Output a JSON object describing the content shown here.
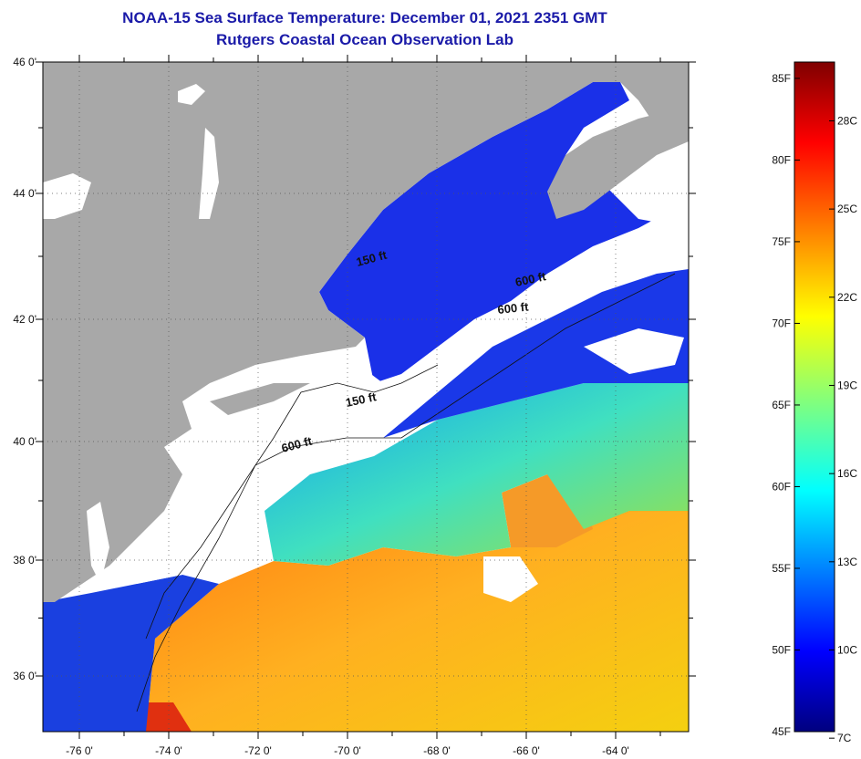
{
  "header": {
    "title": "NOAA-15 Sea Surface Temperature:  December 01, 2021 2351 GMT",
    "subtitle": "Rutgers Coastal Ocean Observation Lab"
  },
  "map": {
    "longitude_labels": [
      "-76 0'",
      "-74 0'",
      "-72 0'",
      "-70 0'",
      "-68 0'",
      "-66 0'",
      "-64 0'"
    ],
    "latitude_labels": [
      "46 0'",
      "44 0'",
      "42 0'",
      "40 0'",
      "38 0'",
      "36 0'"
    ],
    "contour_labels": [
      {
        "text": "150 ft",
        "key": "gom-150"
      },
      {
        "text": "600 ft",
        "key": "gom-600-a"
      },
      {
        "text": "600 ft",
        "key": "gom-600-b"
      },
      {
        "text": "150 ft",
        "key": "shelf-150"
      },
      {
        "text": "600 ft",
        "key": "shelf-600"
      }
    ],
    "colors": {
      "land": "#a8a8a8",
      "cloud": "#ffffff",
      "cold_water": "#1428e0",
      "warm_water": "#f08c1e"
    }
  },
  "colorbar": {
    "fahrenheit_labels": [
      "85F",
      "80F",
      "75F",
      "70F",
      "65F",
      "60F",
      "55F",
      "50F",
      "45F"
    ],
    "celsius_labels": [
      "28C",
      "25C",
      "22C",
      "19C",
      "16C",
      "13C",
      "10C",
      "7C"
    ],
    "min_f": 45,
    "max_f": 86
  }
}
